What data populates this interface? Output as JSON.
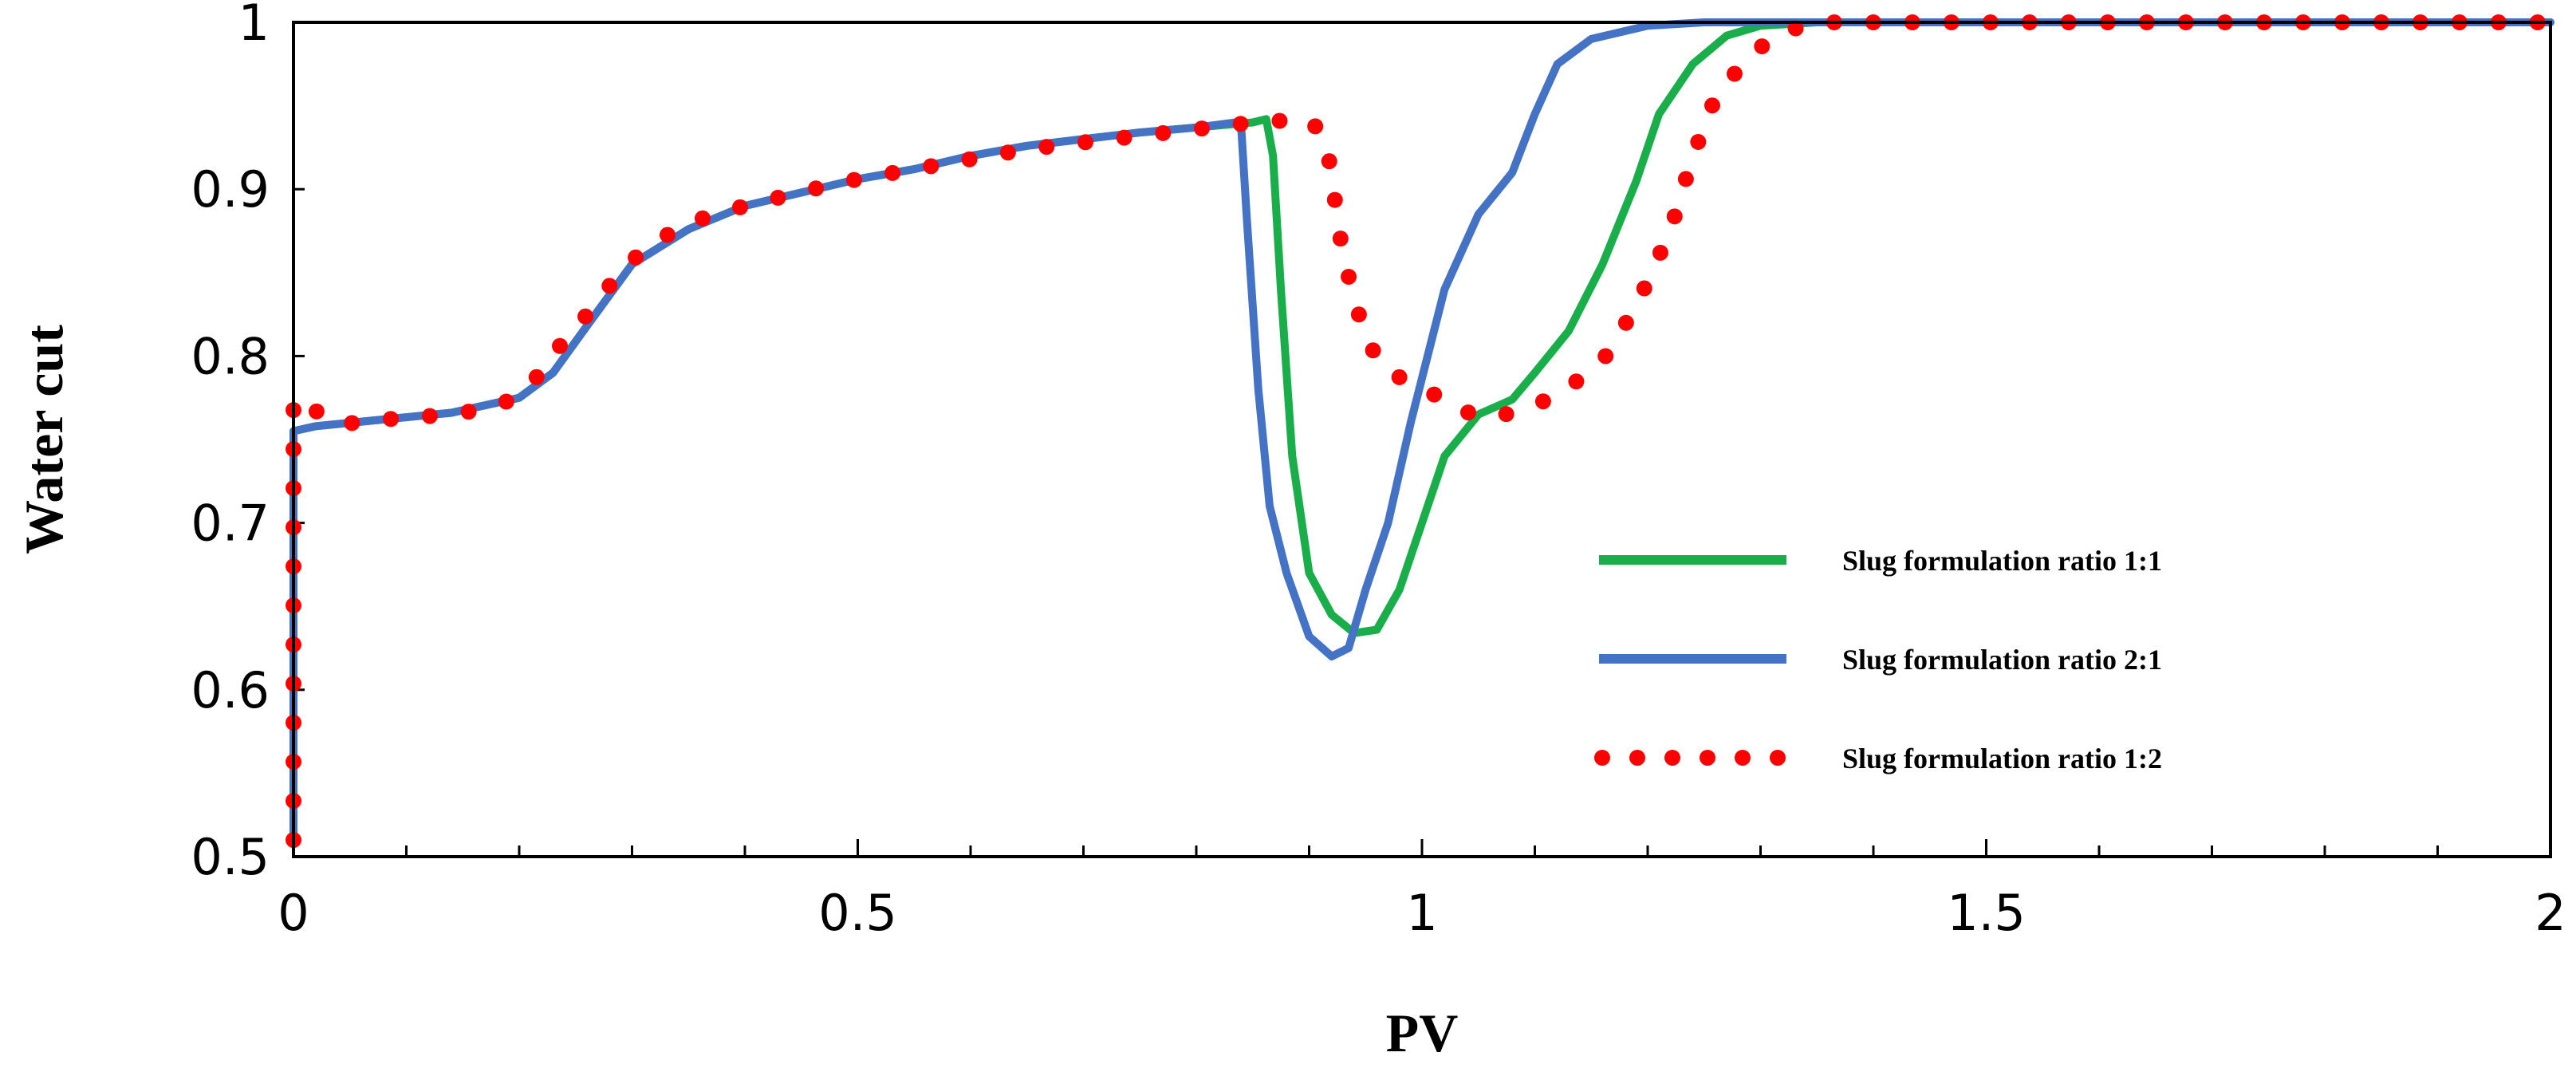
{
  "chart_data": {
    "type": "line",
    "xlabel": "PV",
    "ylabel": "Water cut",
    "xlim": [
      0,
      2
    ],
    "ylim": [
      0.5,
      1
    ],
    "xticks": [
      0,
      0.5,
      1,
      1.5,
      2
    ],
    "xtick_labels": [
      "0",
      "0.5",
      "1",
      "1.5",
      "2"
    ],
    "yticks": [
      0.5,
      0.6,
      0.7,
      0.8,
      0.9,
      1
    ],
    "ytick_labels": [
      "0.5",
      "0.6",
      "0.7",
      "0.8",
      "0.9",
      "1"
    ],
    "x_minor_step": 0.1,
    "grid": false,
    "legend_position": "right-middle",
    "series": [
      {
        "name": "Slug formulation ratio 1:1",
        "color": "#1aae4b",
        "style": "solid",
        "points": [
          [
            0,
            0.51
          ],
          [
            0,
            0.755
          ],
          [
            0.02,
            0.758
          ],
          [
            0.08,
            0.762
          ],
          [
            0.14,
            0.766
          ],
          [
            0.2,
            0.775
          ],
          [
            0.23,
            0.79
          ],
          [
            0.26,
            0.818
          ],
          [
            0.3,
            0.855
          ],
          [
            0.35,
            0.876
          ],
          [
            0.4,
            0.89
          ],
          [
            0.45,
            0.898
          ],
          [
            0.5,
            0.906
          ],
          [
            0.55,
            0.912
          ],
          [
            0.6,
            0.92
          ],
          [
            0.65,
            0.926
          ],
          [
            0.7,
            0.93
          ],
          [
            0.75,
            0.934
          ],
          [
            0.8,
            0.937
          ],
          [
            0.85,
            0.94
          ],
          [
            0.862,
            0.942
          ],
          [
            0.868,
            0.92
          ],
          [
            0.875,
            0.84
          ],
          [
            0.885,
            0.74
          ],
          [
            0.9,
            0.67
          ],
          [
            0.92,
            0.645
          ],
          [
            0.94,
            0.634
          ],
          [
            0.96,
            0.636
          ],
          [
            0.98,
            0.66
          ],
          [
            1.0,
            0.7
          ],
          [
            1.02,
            0.74
          ],
          [
            1.05,
            0.765
          ],
          [
            1.08,
            0.774
          ],
          [
            1.1,
            0.79
          ],
          [
            1.13,
            0.815
          ],
          [
            1.16,
            0.855
          ],
          [
            1.19,
            0.905
          ],
          [
            1.21,
            0.945
          ],
          [
            1.24,
            0.975
          ],
          [
            1.27,
            0.992
          ],
          [
            1.3,
            0.998
          ],
          [
            1.35,
            1.0
          ],
          [
            2.0,
            1.0
          ]
        ]
      },
      {
        "name": "Slug formulation ratio 2:1",
        "color": "#4472c4",
        "style": "solid",
        "points": [
          [
            0,
            0.51
          ],
          [
            0,
            0.755
          ],
          [
            0.02,
            0.758
          ],
          [
            0.08,
            0.762
          ],
          [
            0.14,
            0.766
          ],
          [
            0.2,
            0.775
          ],
          [
            0.23,
            0.79
          ],
          [
            0.26,
            0.818
          ],
          [
            0.3,
            0.855
          ],
          [
            0.35,
            0.876
          ],
          [
            0.4,
            0.89
          ],
          [
            0.45,
            0.898
          ],
          [
            0.5,
            0.906
          ],
          [
            0.55,
            0.912
          ],
          [
            0.6,
            0.92
          ],
          [
            0.65,
            0.926
          ],
          [
            0.7,
            0.93
          ],
          [
            0.75,
            0.934
          ],
          [
            0.8,
            0.937
          ],
          [
            0.835,
            0.94
          ],
          [
            0.84,
            0.935
          ],
          [
            0.845,
            0.88
          ],
          [
            0.855,
            0.78
          ],
          [
            0.865,
            0.71
          ],
          [
            0.88,
            0.67
          ],
          [
            0.9,
            0.632
          ],
          [
            0.92,
            0.62
          ],
          [
            0.935,
            0.625
          ],
          [
            0.95,
            0.66
          ],
          [
            0.97,
            0.7
          ],
          [
            0.99,
            0.76
          ],
          [
            1.02,
            0.84
          ],
          [
            1.05,
            0.885
          ],
          [
            1.08,
            0.91
          ],
          [
            1.1,
            0.945
          ],
          [
            1.12,
            0.975
          ],
          [
            1.15,
            0.99
          ],
          [
            1.2,
            0.998
          ],
          [
            1.25,
            1.0
          ],
          [
            2.0,
            1.0
          ]
        ]
      },
      {
        "name": "Slug formulation ratio 1:2",
        "color": "#ff0000",
        "style": "dotted",
        "points": [
          [
            0,
            0.51
          ],
          [
            0,
            0.775
          ],
          [
            0.04,
            0.759
          ],
          [
            0.08,
            0.762
          ],
          [
            0.12,
            0.764
          ],
          [
            0.16,
            0.767
          ],
          [
            0.19,
            0.773
          ],
          [
            0.22,
            0.79
          ],
          [
            0.24,
            0.81
          ],
          [
            0.27,
            0.832
          ],
          [
            0.29,
            0.852
          ],
          [
            0.32,
            0.868
          ],
          [
            0.35,
            0.88
          ],
          [
            0.4,
            0.89
          ],
          [
            0.46,
            0.9
          ],
          [
            0.5,
            0.906
          ],
          [
            0.55,
            0.912
          ],
          [
            0.6,
            0.918
          ],
          [
            0.65,
            0.924
          ],
          [
            0.7,
            0.928
          ],
          [
            0.75,
            0.932
          ],
          [
            0.8,
            0.936
          ],
          [
            0.85,
            0.94
          ],
          [
            0.9,
            0.942
          ],
          [
            0.915,
            0.93
          ],
          [
            0.93,
            0.86
          ],
          [
            0.95,
            0.81
          ],
          [
            0.97,
            0.79
          ],
          [
            1.0,
            0.782
          ],
          [
            1.03,
            0.768
          ],
          [
            1.06,
            0.763
          ],
          [
            1.08,
            0.766
          ],
          [
            1.12,
            0.776
          ],
          [
            1.16,
            0.797
          ],
          [
            1.19,
            0.83
          ],
          [
            1.22,
            0.875
          ],
          [
            1.24,
            0.92
          ],
          [
            1.26,
            0.955
          ],
          [
            1.29,
            0.98
          ],
          [
            1.32,
            0.995
          ],
          [
            1.36,
            1.0
          ],
          [
            2.0,
            1.0
          ]
        ]
      }
    ]
  }
}
